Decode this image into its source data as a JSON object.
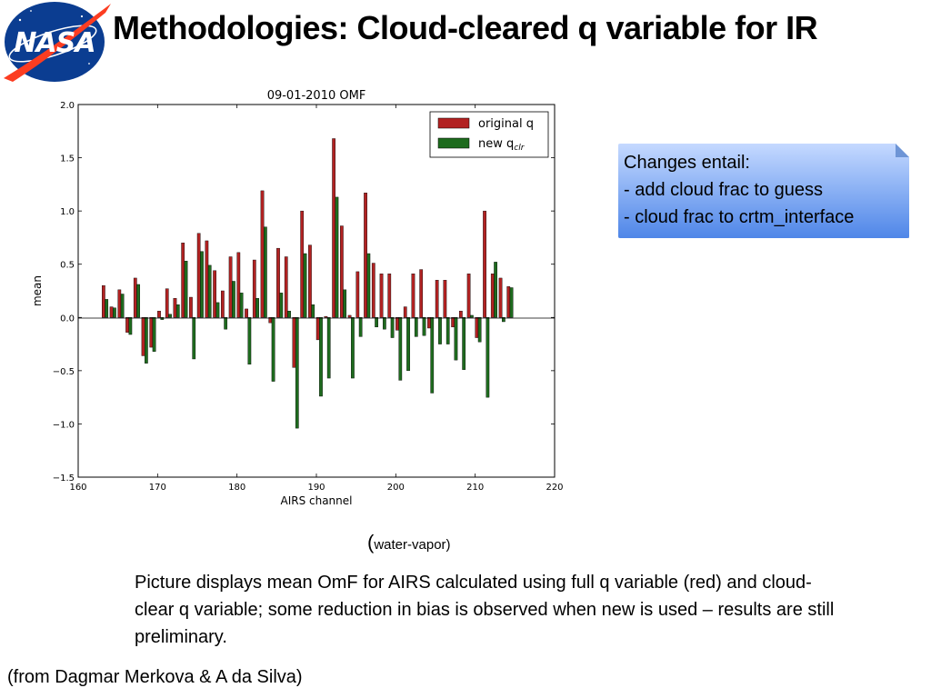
{
  "slide": {
    "title": "Methodologies: Cloud-cleared q variable for IR",
    "logo_text": "NASA",
    "callout_lines": [
      "Changes entail:",
      "- add cloud frac to guess",
      "- cloud frac to crtm_interface"
    ],
    "caption_open": "(",
    "caption_text": "water-vapor)",
    "description": "Picture displays mean OmF for AIRS calculated using full q variable (red) and cloud-clear q variable; some reduction in bias is observed when new is used – results are still preliminary.",
    "credit": "(from Dagmar Merkova & A da Silva)"
  },
  "colors": {
    "red": "#b22222",
    "green": "#1e6b1e",
    "callout": "#4f86e8",
    "nasa_blue": "#0b3d91",
    "nasa_red": "#fc3d21"
  },
  "chart_data": {
    "type": "bar",
    "title": "09-01-2010 OMF",
    "xlabel": "AIRS channel",
    "ylabel": "mean",
    "xlim": [
      160,
      220
    ],
    "ylim": [
      -1.5,
      2.0
    ],
    "xticks": [
      "160",
      "170",
      "180",
      "190",
      "200",
      "210",
      "220"
    ],
    "yticks": [
      "2.0",
      "1.5",
      "1.0",
      "0.5",
      "0.0",
      "−0.5",
      "−1.0",
      "−1.5"
    ],
    "legend_position": "top-right",
    "grid": false,
    "x": [
      163,
      164,
      165,
      166,
      167,
      168,
      169,
      170,
      171,
      172,
      173,
      174,
      175,
      176,
      177,
      178,
      179,
      180,
      181,
      182,
      183,
      184,
      185,
      186,
      187,
      188,
      189,
      190,
      191,
      192,
      193,
      194,
      195,
      196,
      197,
      198,
      199,
      200,
      201,
      202,
      203,
      204,
      205,
      206,
      207,
      208,
      209,
      210,
      211,
      212,
      213,
      214
    ],
    "series": [
      {
        "name": "original q",
        "values": [
          0.3,
          0.1,
          0.26,
          -0.14,
          0.37,
          -0.36,
          -0.28,
          0.06,
          0.27,
          0.18,
          0.7,
          0.19,
          0.79,
          0.72,
          0.44,
          0.25,
          0.57,
          0.61,
          0.08,
          0.54,
          1.19,
          -0.05,
          0.65,
          0.57,
          -0.47,
          1.0,
          0.68,
          -0.21,
          0.01,
          1.68,
          0.86,
          0.02,
          0.43,
          1.17,
          0.51,
          0.41,
          0.41,
          -0.12,
          0.1,
          0.41,
          0.45,
          -0.1,
          0.35,
          0.35,
          -0.09,
          0.06,
          0.41,
          -0.19,
          1.0,
          0.41,
          0.37,
          0.29
        ]
      },
      {
        "name": "new q",
        "legend_subscript": "clr",
        "values": [
          0.17,
          0.09,
          0.22,
          -0.16,
          0.31,
          -0.43,
          -0.32,
          -0.02,
          0.03,
          0.12,
          0.53,
          -0.39,
          0.62,
          0.49,
          0.14,
          -0.11,
          0.34,
          0.23,
          -0.44,
          0.18,
          0.85,
          -0.6,
          0.23,
          0.06,
          -1.04,
          0.6,
          0.12,
          -0.74,
          -0.57,
          1.13,
          0.26,
          -0.57,
          -0.18,
          0.6,
          -0.09,
          -0.11,
          -0.19,
          -0.59,
          -0.5,
          -0.18,
          -0.17,
          -0.71,
          -0.25,
          -0.25,
          -0.4,
          -0.49,
          0.02,
          -0.23,
          -0.75,
          0.52,
          -0.04,
          0.28
        ]
      }
    ]
  }
}
